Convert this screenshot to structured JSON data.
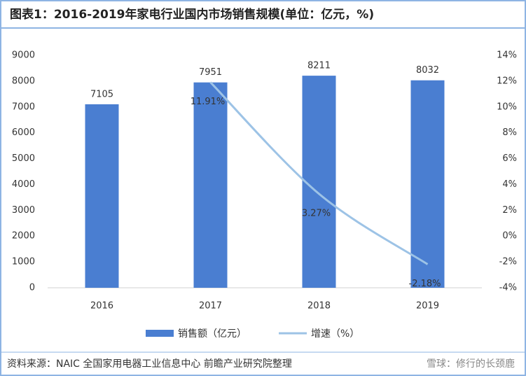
{
  "chart_data": {
    "type": "combo",
    "title": "图表1：2016-2019年家电行业国内市场销售规模(单位：亿元，%)",
    "categories": [
      "2016",
      "2017",
      "2018",
      "2019"
    ],
    "series": [
      {
        "name": "销售额（亿元）",
        "type": "bar",
        "color": "#4a7ed1",
        "values": [
          7105,
          7951,
          8211,
          8032
        ]
      },
      {
        "name": "增速（%）",
        "type": "line",
        "axis": "y2",
        "color": "#9dc3e6",
        "values": [
          null,
          11.91,
          3.27,
          -2.18
        ],
        "value_labels": [
          null,
          "11.91%",
          "3.27%",
          "-2.18%"
        ]
      }
    ],
    "ylim": [
      0,
      9000
    ],
    "yticks": [
      0,
      1000,
      2000,
      3000,
      4000,
      5000,
      6000,
      7000,
      8000,
      9000
    ],
    "y2lim": [
      -4,
      14
    ],
    "y2ticks": [
      {
        "value": -4,
        "label": "-4%"
      },
      {
        "value": -2,
        "label": "-2%"
      },
      {
        "value": 0,
        "label": "0%"
      },
      {
        "value": 2,
        "label": "2%"
      },
      {
        "value": 4,
        "label": "4%"
      },
      {
        "value": 6,
        "label": "6%"
      },
      {
        "value": 8,
        "label": "8%"
      },
      {
        "value": 10,
        "label": "10%"
      },
      {
        "value": 12,
        "label": "12%"
      },
      {
        "value": 14,
        "label": "14%"
      }
    ],
    "source": "资料来源：NAIC 全国家用电器工业信息中心 前瞻产业研究院整理",
    "watermark": "雪球：修行的长颈鹿"
  }
}
